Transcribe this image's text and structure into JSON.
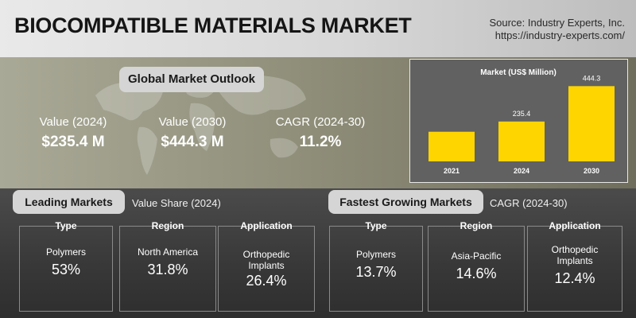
{
  "header": {
    "title": "BIOCOMPATIBLE MATERIALS MARKET",
    "source_line1": "Source: Industry Experts, Inc.",
    "source_line2": "https://industry-experts.com/"
  },
  "outlook": {
    "title": "Global Market Outlook",
    "stats": [
      {
        "label": "Value (2024)",
        "value": "$235.4 M"
      },
      {
        "label": "Value (2030)",
        "value": "$444.3 M"
      },
      {
        "label": "CAGR (2024-30)",
        "value": "11.2%"
      }
    ]
  },
  "chart_data": {
    "type": "bar",
    "title": "Market (US$ Million)",
    "categories": [
      "2021",
      "2024",
      "2030"
    ],
    "values": [
      null,
      235.4,
      444.3
    ],
    "visual_values": [
      175,
      235.4,
      444.3
    ],
    "data_labels": [
      "",
      "235.4",
      "444.3"
    ],
    "ylim": [
      0,
      460
    ],
    "bar_color": "#ffd500",
    "grid": false,
    "legend": "none"
  },
  "leading": {
    "title": "Leading Markets",
    "subtitle": "Value Share (2024)",
    "cards": [
      {
        "header": "Type",
        "name": "Polymers",
        "value": "53%"
      },
      {
        "header": "Region",
        "name": "North America",
        "value": "31.8%"
      },
      {
        "header": "Application",
        "name": "Orthopedic\nImplants",
        "value": "26.4%"
      }
    ]
  },
  "fastest": {
    "title": "Fastest Growing Markets",
    "subtitle": "CAGR (2024-30)",
    "cards": [
      {
        "header": "Type",
        "name": "Polymers",
        "value": "13.7%"
      },
      {
        "header": "Region",
        "name": "Asia-Pacific",
        "value": "14.6%"
      },
      {
        "header": "Application",
        "name": "Orthopedic\nImplants",
        "value": "12.4%"
      }
    ]
  },
  "colors": {
    "accent_yellow": "#ffd500",
    "card_border": "#8a8a8a",
    "pill_bg": "#d5d5d5"
  }
}
